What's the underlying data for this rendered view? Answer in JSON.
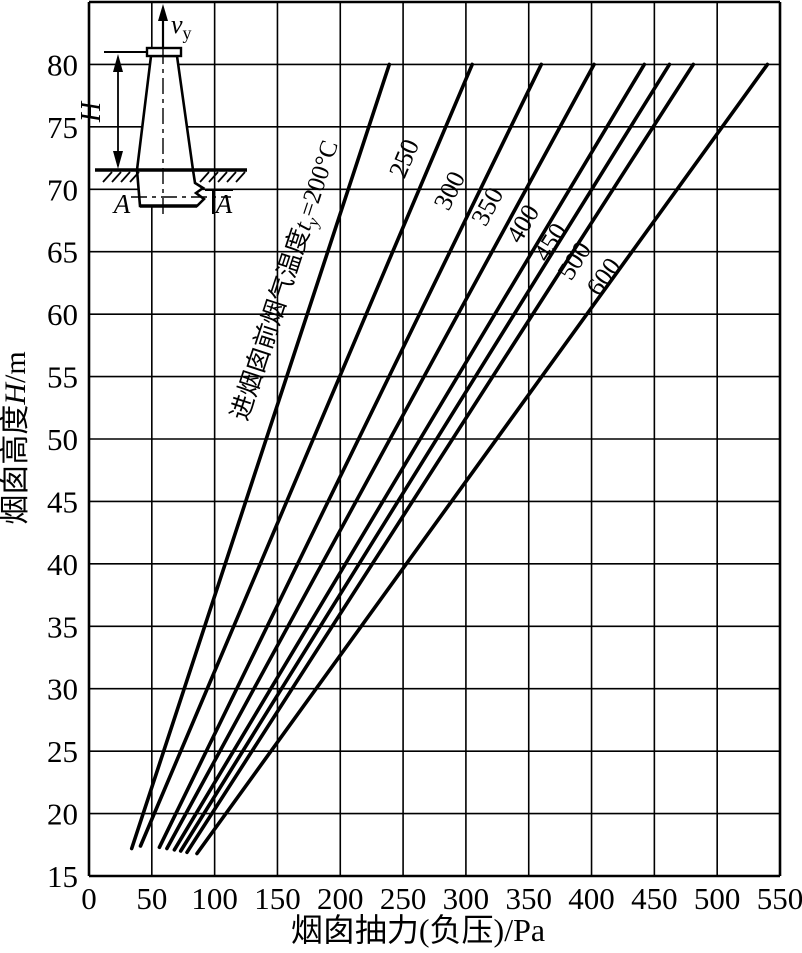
{
  "figure": {
    "background": "#ffffff",
    "ink_color": "#000000"
  },
  "chart_data": {
    "type": "line",
    "title": "",
    "xlabel": "烟囱抽力(负压)/Pa",
    "ylabel_cjk": "烟囱高度",
    "ylabel_var": "H",
    "ylabel_unit": "/m",
    "xlim": [
      0,
      550
    ],
    "ylim": [
      15,
      85
    ],
    "x_ticks": [
      0,
      50,
      100,
      150,
      200,
      250,
      300,
      350,
      400,
      450,
      500,
      550
    ],
    "y_ticks": [
      15,
      20,
      25,
      30,
      35,
      40,
      45,
      50,
      55,
      60,
      65,
      70,
      75,
      80
    ],
    "x_grid_step": 50,
    "y_grid_step": 5,
    "grid": true,
    "legend_position": "labels along curves",
    "series_meaning": "flue-gas temperature at chimney inlet, °C; x = chimney draft (negative pressure) in Pa, y = chimney height H in m",
    "series": [
      {
        "name": "200",
        "label_parts": {
          "prefix": "进烟囱前烟气温度",
          "var": "t",
          "sub": "y",
          "suffix": "=200°C"
        },
        "points": [
          [
            34,
            17.2
          ],
          [
            239,
            80
          ]
        ],
        "label_pos": [
          162,
          62.5
        ]
      },
      {
        "name": "250",
        "points": [
          [
            41,
            17.4
          ],
          [
            305,
            80
          ]
        ],
        "label_pos": [
          257,
          72.2
        ]
      },
      {
        "name": "300",
        "points": [
          [
            56,
            17.3
          ],
          [
            360,
            80
          ]
        ],
        "label_pos": [
          293,
          69.6
        ]
      },
      {
        "name": "350",
        "points": [
          [
            62,
            17.2
          ],
          [
            402,
            80
          ]
        ],
        "label_pos": [
          323,
          68.3
        ]
      },
      {
        "name": "400",
        "points": [
          [
            68,
            17.1
          ],
          [
            442,
            80
          ]
        ],
        "label_pos": [
          351,
          66.9
        ]
      },
      {
        "name": "450",
        "points": [
          [
            73,
            17.0
          ],
          [
            462,
            80
          ]
        ],
        "label_pos": [
          373,
          65.4
        ]
      },
      {
        "name": "500",
        "points": [
          [
            78,
            16.9
          ],
          [
            481,
            80
          ]
        ],
        "label_pos": [
          392,
          63.9
        ]
      },
      {
        "name": "600",
        "points": [
          [
            86,
            16.8
          ],
          [
            540,
            80
          ]
        ],
        "label_pos": [
          415,
          62.6
        ]
      }
    ]
  },
  "inset": {
    "velocity_var": "v",
    "velocity_sub": "y",
    "height_label": "H",
    "section_left": "A",
    "section_right": "A"
  }
}
